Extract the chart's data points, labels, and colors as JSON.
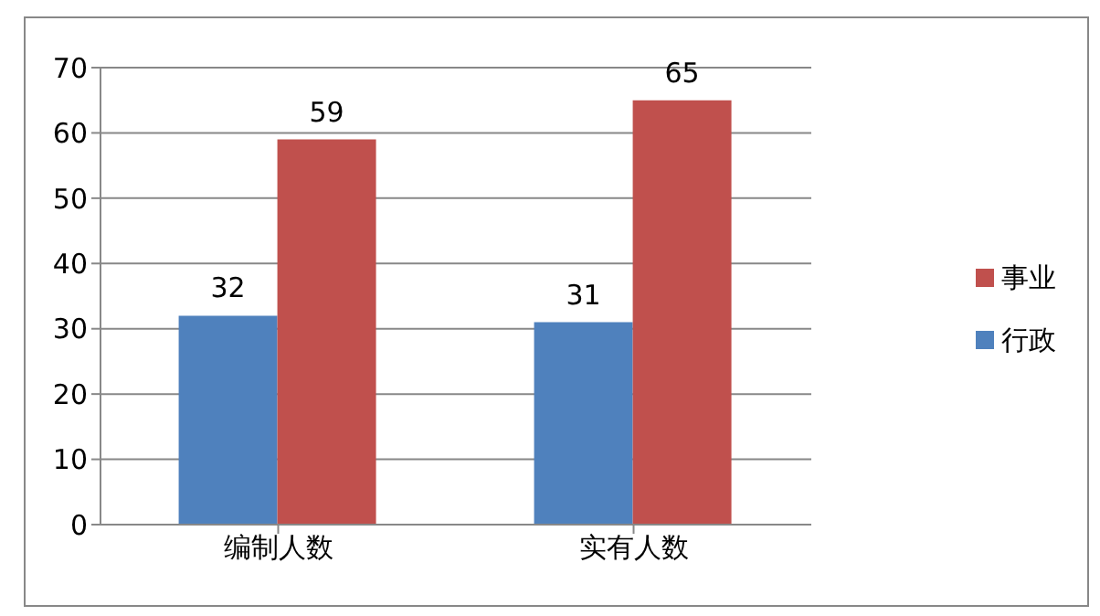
{
  "chart_data": {
    "type": "bar",
    "categories": [
      "编制人数",
      "实有人数"
    ],
    "series": [
      {
        "name": "行政",
        "color": "#4f81bd",
        "values": [
          32,
          31
        ]
      },
      {
        "name": "事业",
        "color": "#c0504d",
        "values": [
          59,
          65
        ]
      }
    ],
    "ylim": [
      0,
      70
    ],
    "yticks": [
      0,
      10,
      20,
      30,
      40,
      50,
      60,
      70
    ],
    "grid": "y",
    "legend": "right",
    "data_labels": true
  }
}
